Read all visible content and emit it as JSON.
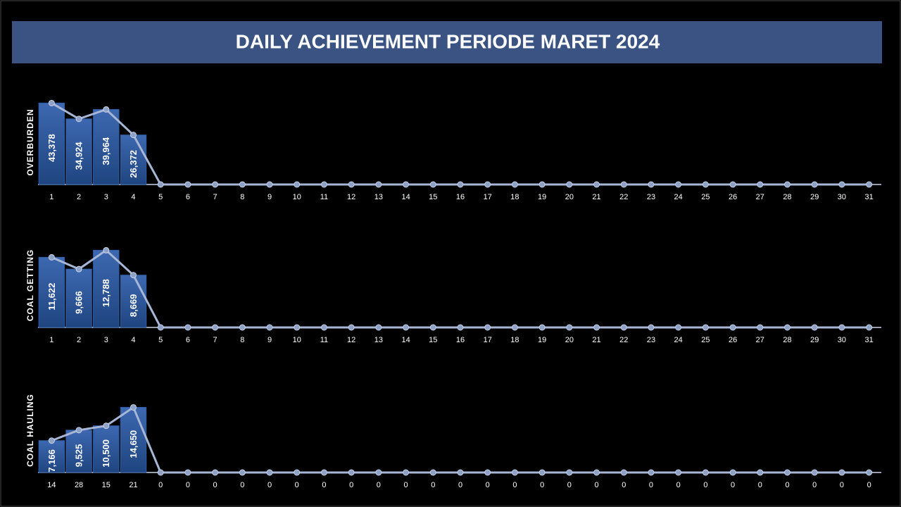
{
  "header": {
    "title": "DAILY ACHIEVEMENT PERIODE MARET 2024"
  },
  "chart_data": [
    {
      "type": "bar_line",
      "ylabel": "OVERBURDEN",
      "categories": [
        "1",
        "2",
        "3",
        "4",
        "5",
        "6",
        "7",
        "8",
        "9",
        "10",
        "11",
        "12",
        "13",
        "14",
        "15",
        "16",
        "17",
        "18",
        "19",
        "20",
        "21",
        "22",
        "23",
        "24",
        "25",
        "26",
        "27",
        "28",
        "29",
        "30",
        "31"
      ],
      "values": [
        43378,
        34924,
        39964,
        26372,
        0,
        0,
        0,
        0,
        0,
        0,
        0,
        0,
        0,
        0,
        0,
        0,
        0,
        0,
        0,
        0,
        0,
        0,
        0,
        0,
        0,
        0,
        0,
        0,
        0,
        0,
        0
      ],
      "value_labels": [
        "43,378",
        "34,924",
        "39,964",
        "26,372",
        null,
        null,
        null,
        null,
        null,
        null,
        null,
        null,
        null,
        null,
        null,
        null,
        null,
        null,
        null,
        null,
        null,
        null,
        null,
        null,
        null,
        null,
        null,
        null,
        null,
        null,
        null
      ],
      "color": "#2f5ea6",
      "line_color": "#a7b6d6",
      "ylim": [
        0,
        45000
      ]
    },
    {
      "type": "bar_line",
      "ylabel": "COAL GETTING",
      "categories": [
        "1",
        "2",
        "3",
        "4",
        "5",
        "6",
        "7",
        "8",
        "9",
        "10",
        "11",
        "12",
        "13",
        "14",
        "15",
        "16",
        "17",
        "18",
        "19",
        "20",
        "21",
        "22",
        "23",
        "24",
        "25",
        "26",
        "27",
        "28",
        "29",
        "30",
        "31"
      ],
      "values": [
        11622,
        9666,
        12788,
        8669,
        0,
        0,
        0,
        0,
        0,
        0,
        0,
        0,
        0,
        0,
        0,
        0,
        0,
        0,
        0,
        0,
        0,
        0,
        0,
        0,
        0,
        0,
        0,
        0,
        0,
        0,
        0
      ],
      "value_labels": [
        "11,622",
        "9,666",
        "12,788",
        "8,669",
        null,
        null,
        null,
        null,
        null,
        null,
        null,
        null,
        null,
        null,
        null,
        null,
        null,
        null,
        null,
        null,
        null,
        null,
        null,
        null,
        null,
        null,
        null,
        null,
        null,
        null,
        null
      ],
      "color": "#2f5ea6",
      "line_color": "#a7b6d6",
      "ylim": [
        0,
        14000
      ]
    },
    {
      "type": "bar_line",
      "ylabel": "COAL HAULING",
      "categories": [
        "14",
        "28",
        "15",
        "21",
        "0",
        "0",
        "0",
        "0",
        "0",
        "0",
        "0",
        "0",
        "0",
        "0",
        "0",
        "0",
        "0",
        "0",
        "0",
        "0",
        "0",
        "0",
        "0",
        "0",
        "0",
        "0",
        "0",
        "0",
        "0",
        "0",
        "0"
      ],
      "values": [
        7166,
        9525,
        10500,
        14650,
        0,
        0,
        0,
        0,
        0,
        0,
        0,
        0,
        0,
        0,
        0,
        0,
        0,
        0,
        0,
        0,
        0,
        0,
        0,
        0,
        0,
        0,
        0,
        0,
        0,
        0,
        0
      ],
      "value_labels": [
        "7,166",
        "9,525",
        "10,500",
        "14,650",
        null,
        null,
        null,
        null,
        null,
        null,
        null,
        null,
        null,
        null,
        null,
        null,
        null,
        null,
        null,
        null,
        null,
        null,
        null,
        null,
        null,
        null,
        null,
        null,
        null,
        null,
        null
      ],
      "color": "#2f5ea6",
      "line_color": "#a7b6d6",
      "ylim": [
        0,
        19000
      ]
    }
  ]
}
